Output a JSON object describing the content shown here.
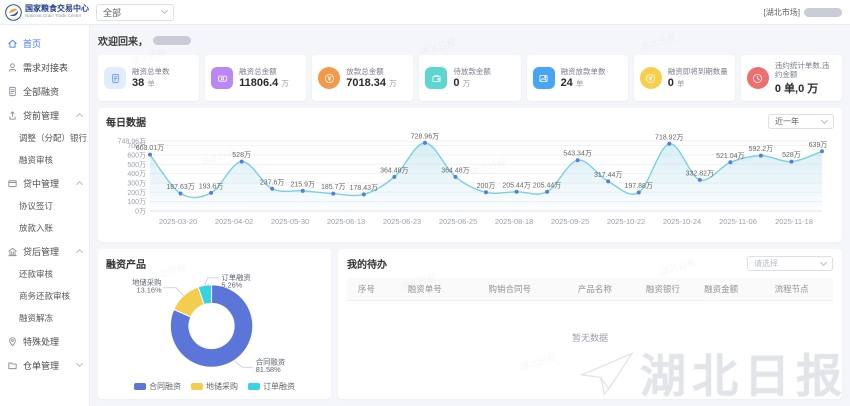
{
  "header": {
    "logo_title": "国家粮食交易中心",
    "logo_subtitle": "National Grain Trade Center",
    "scope_select": "全部",
    "market_label": "[湖北市场]"
  },
  "sidebar": [
    {
      "label": "首页",
      "icon": "home-icon",
      "active": true
    },
    {
      "label": "需求对接表",
      "icon": "user-icon"
    },
    {
      "label": "全部融资",
      "icon": "doc-icon"
    },
    {
      "label": "贷前管理",
      "icon": "upload-icon",
      "chevron": "up"
    },
    {
      "label": "调整（分配）银行",
      "child": true
    },
    {
      "label": "融资审核",
      "child": true
    },
    {
      "label": "贷中管理",
      "icon": "card-icon",
      "chevron": "up"
    },
    {
      "label": "协议签订",
      "child": true
    },
    {
      "label": "放款入账",
      "child": true
    },
    {
      "label": "贷后管理",
      "icon": "bank-icon",
      "chevron": "up"
    },
    {
      "label": "还款审核",
      "child": true
    },
    {
      "label": "商务还款审核",
      "child": true
    },
    {
      "label": "融资解冻",
      "child": true
    },
    {
      "label": "特殊处理",
      "icon": "pin-icon"
    },
    {
      "label": "仓单管理",
      "icon": "folder-icon",
      "chevron": "down"
    }
  ],
  "welcome": {
    "text": "欢迎回来，"
  },
  "stats": [
    {
      "label": "融资总单数",
      "value": "38",
      "unit": "单",
      "icon": "file-icon",
      "shape": "square",
      "bg": "#e3ecff",
      "fg": "#6292f7"
    },
    {
      "label": "融资总金额",
      "value": "11806.4",
      "unit": "万",
      "icon": "money-icon",
      "shape": "square",
      "bg": "#bb87f3",
      "fg": "#ffffff"
    },
    {
      "label": "放款总金额",
      "value": "7018.34",
      "unit": "万",
      "icon": "coin-icon",
      "shape": "circle",
      "bg": "#f2994a",
      "fg": "#ffffff"
    },
    {
      "label": "待放款金额",
      "value": "0",
      "unit": "万",
      "icon": "wallet-icon",
      "shape": "square",
      "bg": "#5cd6cf",
      "fg": "#ffffff"
    },
    {
      "label": "融资放款单数",
      "value": "24",
      "unit": "单",
      "icon": "image-icon",
      "shape": "square",
      "bg": "#4aa4f4",
      "fg": "#ffffff"
    },
    {
      "label": "融资即将到期数量",
      "value": "0",
      "unit": "单",
      "icon": "coin-icon",
      "shape": "circle",
      "bg": "#f7cf4b",
      "fg": "#ffffff"
    },
    {
      "label": "违约统计单数,违约金额",
      "value": "0 单,0 万",
      "unit": "",
      "icon": "clock-icon",
      "shape": "circle",
      "bg": "#ee6f6f",
      "fg": "#ffffff"
    }
  ],
  "chart_data": [
    {
      "type": "area",
      "title": "每日数据",
      "range_select": "近一年",
      "unit": "万",
      "x_tick_labels": [
        "2025-03-20",
        "2025-04-02",
        "2025-05-30",
        "2025-06-13",
        "2025-06-23",
        "2025-06-25",
        "2025-08-18",
        "2025-09-25",
        "2025-10-22",
        "2025-10-24",
        "2025-11-06",
        "2025-11-18"
      ],
      "values": [
        603.01,
        187.63,
        193.6,
        528,
        237.6,
        215.9,
        185.7,
        178.43,
        364.48,
        728.96,
        364.48,
        200,
        205.44,
        205.44,
        543.34,
        317.44,
        197.88,
        718.92,
        332.82,
        521.04,
        592.2,
        528,
        639
      ],
      "ylim": [
        0,
        748.96
      ],
      "y_ticks": [
        0,
        100,
        200,
        300,
        400,
        500,
        600,
        700,
        748.96
      ],
      "grid": true,
      "line_color": "#7ad0e2",
      "point_color": "#4f81e3",
      "area_color": "#a8d8ea"
    },
    {
      "type": "pie",
      "title": "融资产品",
      "labels": [
        "合同融资",
        "地储采购",
        "订单融资"
      ],
      "values": [
        81.58,
        13.16,
        5.26
      ],
      "pct_labels": [
        "81.58%",
        "13.16%",
        "5.26%"
      ],
      "colors": [
        "#5b76d8",
        "#f5cd4e",
        "#36d3e3"
      ],
      "legend_position": "bottom"
    }
  ],
  "todos": {
    "title": "我的待办",
    "filter_placeholder": "请选择",
    "columns": [
      "序号",
      "融资单号",
      "购销合同号",
      "产品名称",
      "融资银行",
      "融资金额",
      "流程节点"
    ],
    "empty_text": "暂无数据"
  },
  "watermark": {
    "big": "湖北日报"
  }
}
